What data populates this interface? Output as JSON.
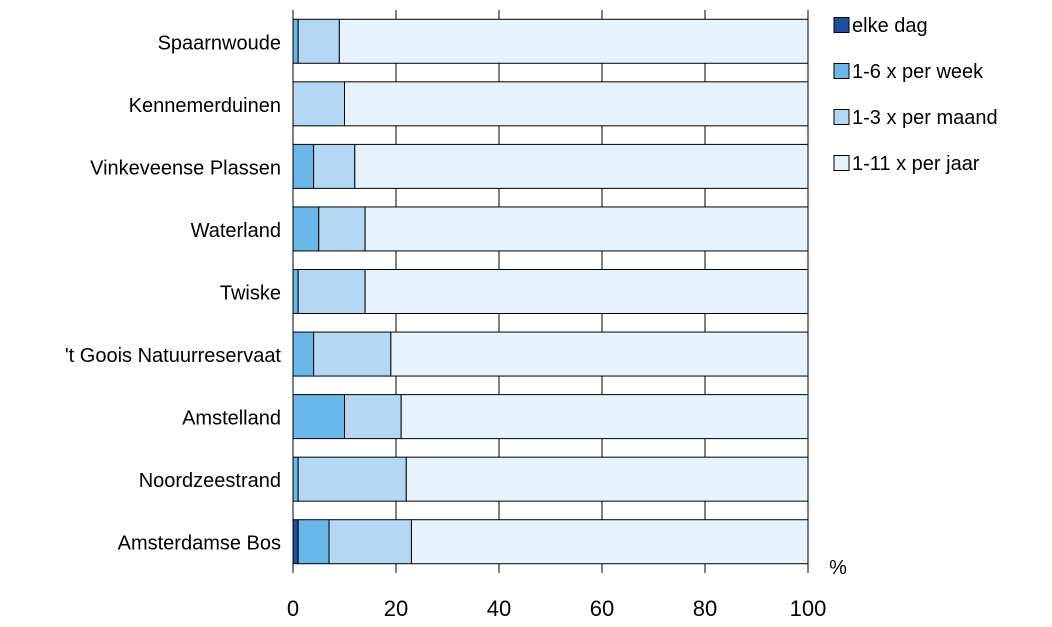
{
  "chart_data": {
    "type": "bar",
    "orientation": "horizontal",
    "stacked": true,
    "categories": [
      "Spaarnwoude",
      "Kennemerduinen",
      "Vinkeveense Plassen",
      "Waterland",
      "Twiske",
      "'t Goois Natuurreservaat",
      "Amstelland",
      "Noordzeestrand",
      "Amsterdamse Bos"
    ],
    "series": [
      {
        "name": "elke dag",
        "color": "#1f4e9c",
        "values": [
          0,
          0,
          0,
          0,
          0,
          0,
          0,
          0,
          1
        ]
      },
      {
        "name": "1-6 x per week",
        "color": "#6ab8ea",
        "values": [
          1,
          0,
          4,
          5,
          1,
          4,
          10,
          1,
          6
        ]
      },
      {
        "name": "1-3 x per maand",
        "color": "#b4d8f3",
        "values": [
          8,
          10,
          8,
          9,
          13,
          15,
          11,
          21,
          16
        ]
      },
      {
        "name": "1-11 x per jaar",
        "color": "#e6f2fc",
        "values": [
          91,
          90,
          88,
          86,
          86,
          81,
          79,
          78,
          77
        ]
      }
    ],
    "xlim": [
      0,
      100
    ],
    "xticks": [
      0,
      20,
      40,
      60,
      80,
      100
    ],
    "unit_label": "%",
    "legend_position": "top-right",
    "grid": "vertical"
  }
}
